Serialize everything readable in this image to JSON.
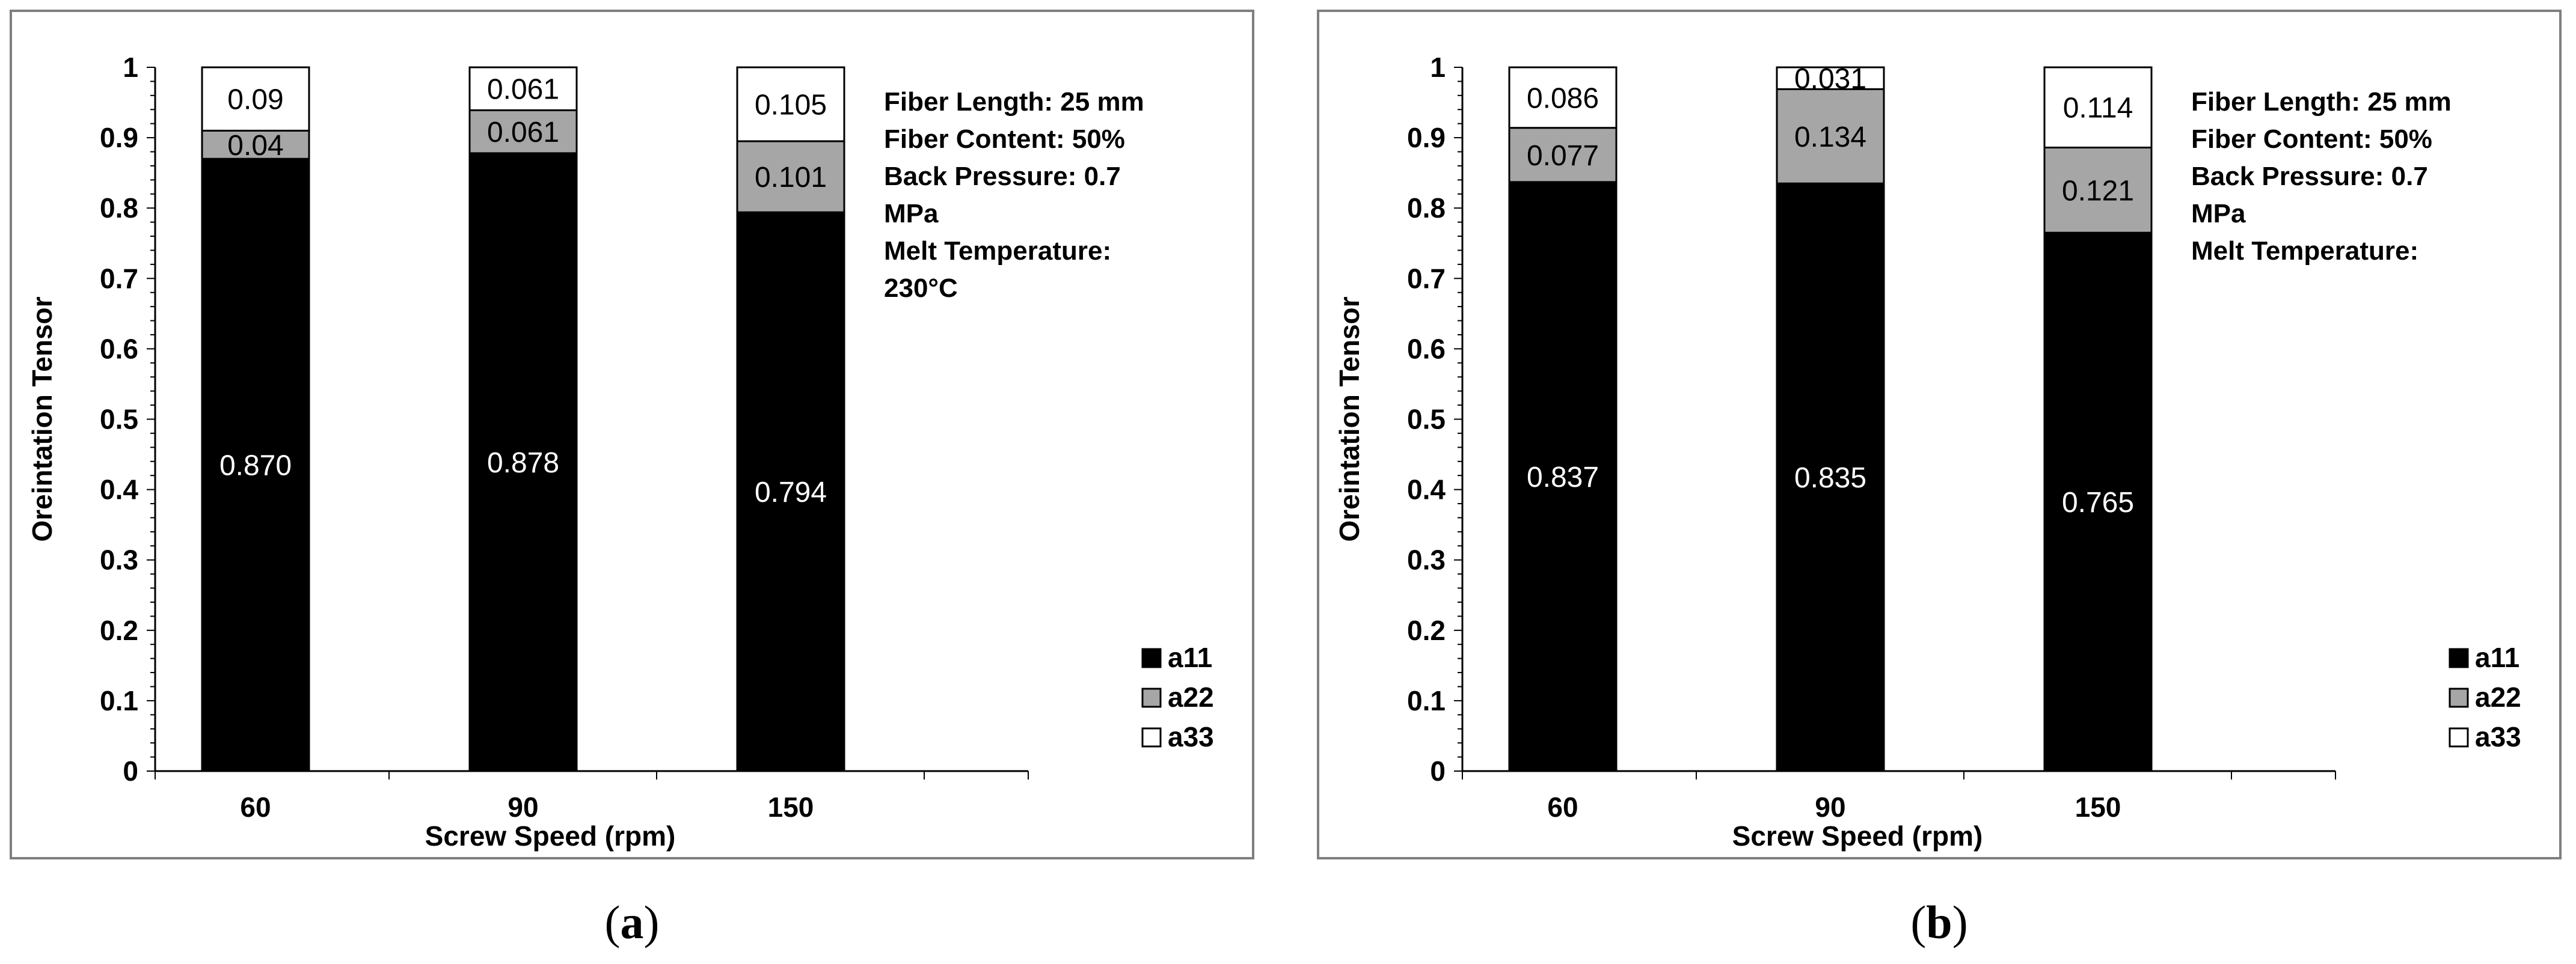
{
  "chart_data": [
    {
      "type": "bar",
      "stacked": true,
      "caption": "a",
      "xlabel": "Screw Speed (rpm)",
      "ylabel": "Oreintation Tensor",
      "ylim": [
        0,
        1
      ],
      "yticks": [
        "0",
        "0.1",
        "0.2",
        "0.3",
        "0.4",
        "0.5",
        "0.6",
        "0.7",
        "0.8",
        "0.9",
        "1"
      ],
      "categories": [
        "60",
        "90",
        "150"
      ],
      "series": [
        {
          "name": "a11",
          "values": [
            0.87,
            0.878,
            0.794
          ],
          "labels": [
            "0.870",
            "0.878",
            "0.794"
          ],
          "color": "#000000"
        },
        {
          "name": "a22",
          "values": [
            0.04,
            0.061,
            0.101
          ],
          "labels": [
            "0.04",
            "0.061",
            "0.101"
          ],
          "color": "#a6a6a6"
        },
        {
          "name": "a33",
          "values": [
            0.09,
            0.061,
            0.105
          ],
          "labels": [
            "0.09",
            "0.061",
            "0.105"
          ],
          "color": "#ffffff"
        }
      ],
      "annotation": [
        "Fiber Length:  25 mm",
        "Fiber Content:  50%",
        "Back Pressure: 0.7",
        "MPa",
        "Melt Temperature:",
        "230°C"
      ],
      "legend_position": "bottom-right",
      "grid": false
    },
    {
      "type": "bar",
      "stacked": true,
      "caption": "b",
      "xlabel": "Screw Speed (rpm)",
      "ylabel": "Oreintation Tensor",
      "ylim": [
        0,
        1
      ],
      "yticks": [
        "0",
        "0.1",
        "0.2",
        "0.3",
        "0.4",
        "0.5",
        "0.6",
        "0.7",
        "0.8",
        "0.9",
        "1"
      ],
      "categories": [
        "60",
        "90",
        "150"
      ],
      "series": [
        {
          "name": "a11",
          "values": [
            0.837,
            0.835,
            0.765
          ],
          "labels": [
            "0.837",
            "0.835",
            "0.765"
          ],
          "color": "#000000"
        },
        {
          "name": "a22",
          "values": [
            0.077,
            0.134,
            0.121
          ],
          "labels": [
            "0.077",
            "0.134",
            "0.121"
          ],
          "color": "#a6a6a6"
        },
        {
          "name": "a33",
          "values": [
            0.086,
            0.031,
            0.114
          ],
          "labels": [
            "0.086",
            "0.031",
            "0.114"
          ],
          "color": "#ffffff"
        }
      ],
      "annotation": [
        "Fiber Length:  25 mm",
        "Fiber Content:  50%",
        "Back Pressure: 0.7",
        "MPa",
        "Melt Temperature:"
      ],
      "legend_position": "bottom-right",
      "grid": false
    }
  ]
}
